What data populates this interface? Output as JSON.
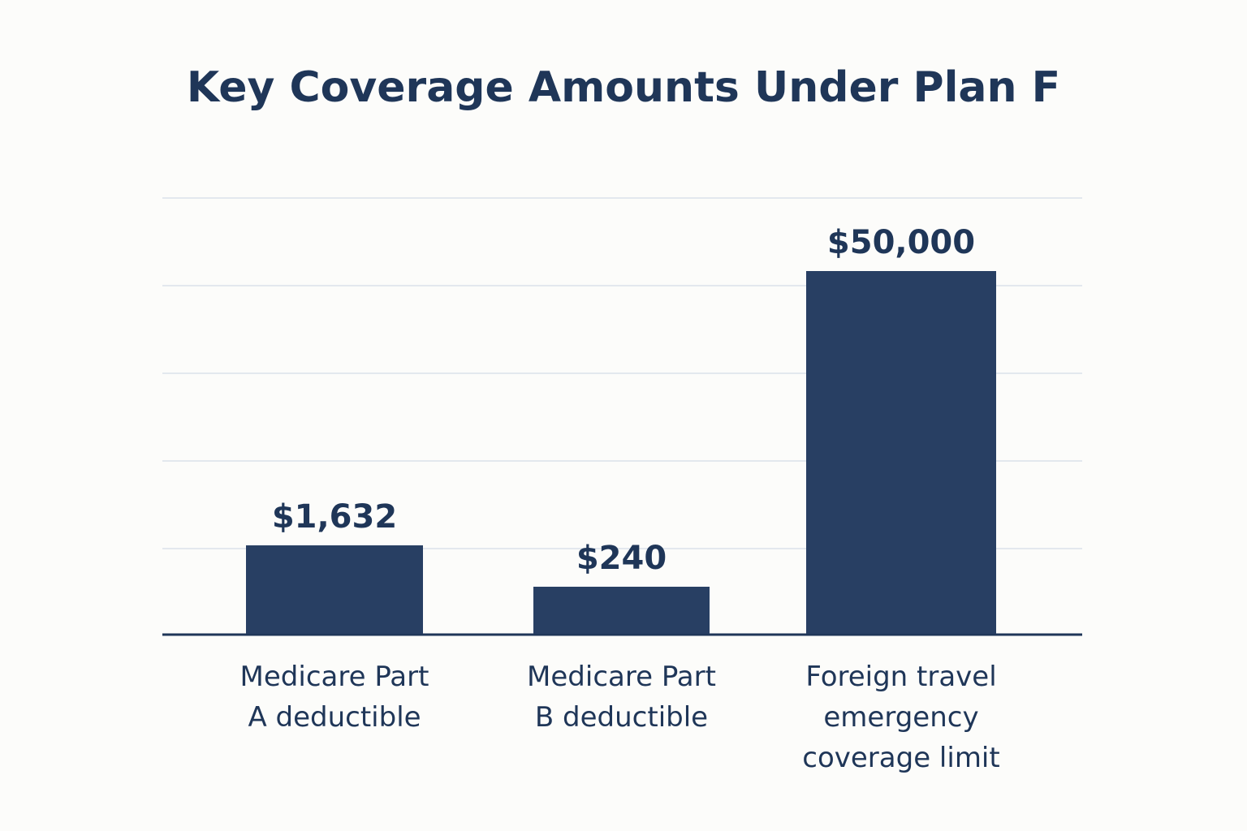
{
  "chart_data": {
    "type": "bar",
    "title": "Key Coverage Amounts Under Plan F",
    "categories": [
      [
        "Medicare Part",
        "A deductible"
      ],
      [
        "Medicare Part",
        "B deductible"
      ],
      [
        "Foreign travel",
        "emergency",
        "coverage limit"
      ]
    ],
    "values": [
      1632,
      240,
      50000
    ],
    "value_labels": [
      "$1,632",
      "$240",
      "$50,000"
    ],
    "xlabel": "",
    "ylabel": "",
    "grid": true,
    "legend": "none",
    "bar_color": "#283f63",
    "scale_note_visible": false
  }
}
